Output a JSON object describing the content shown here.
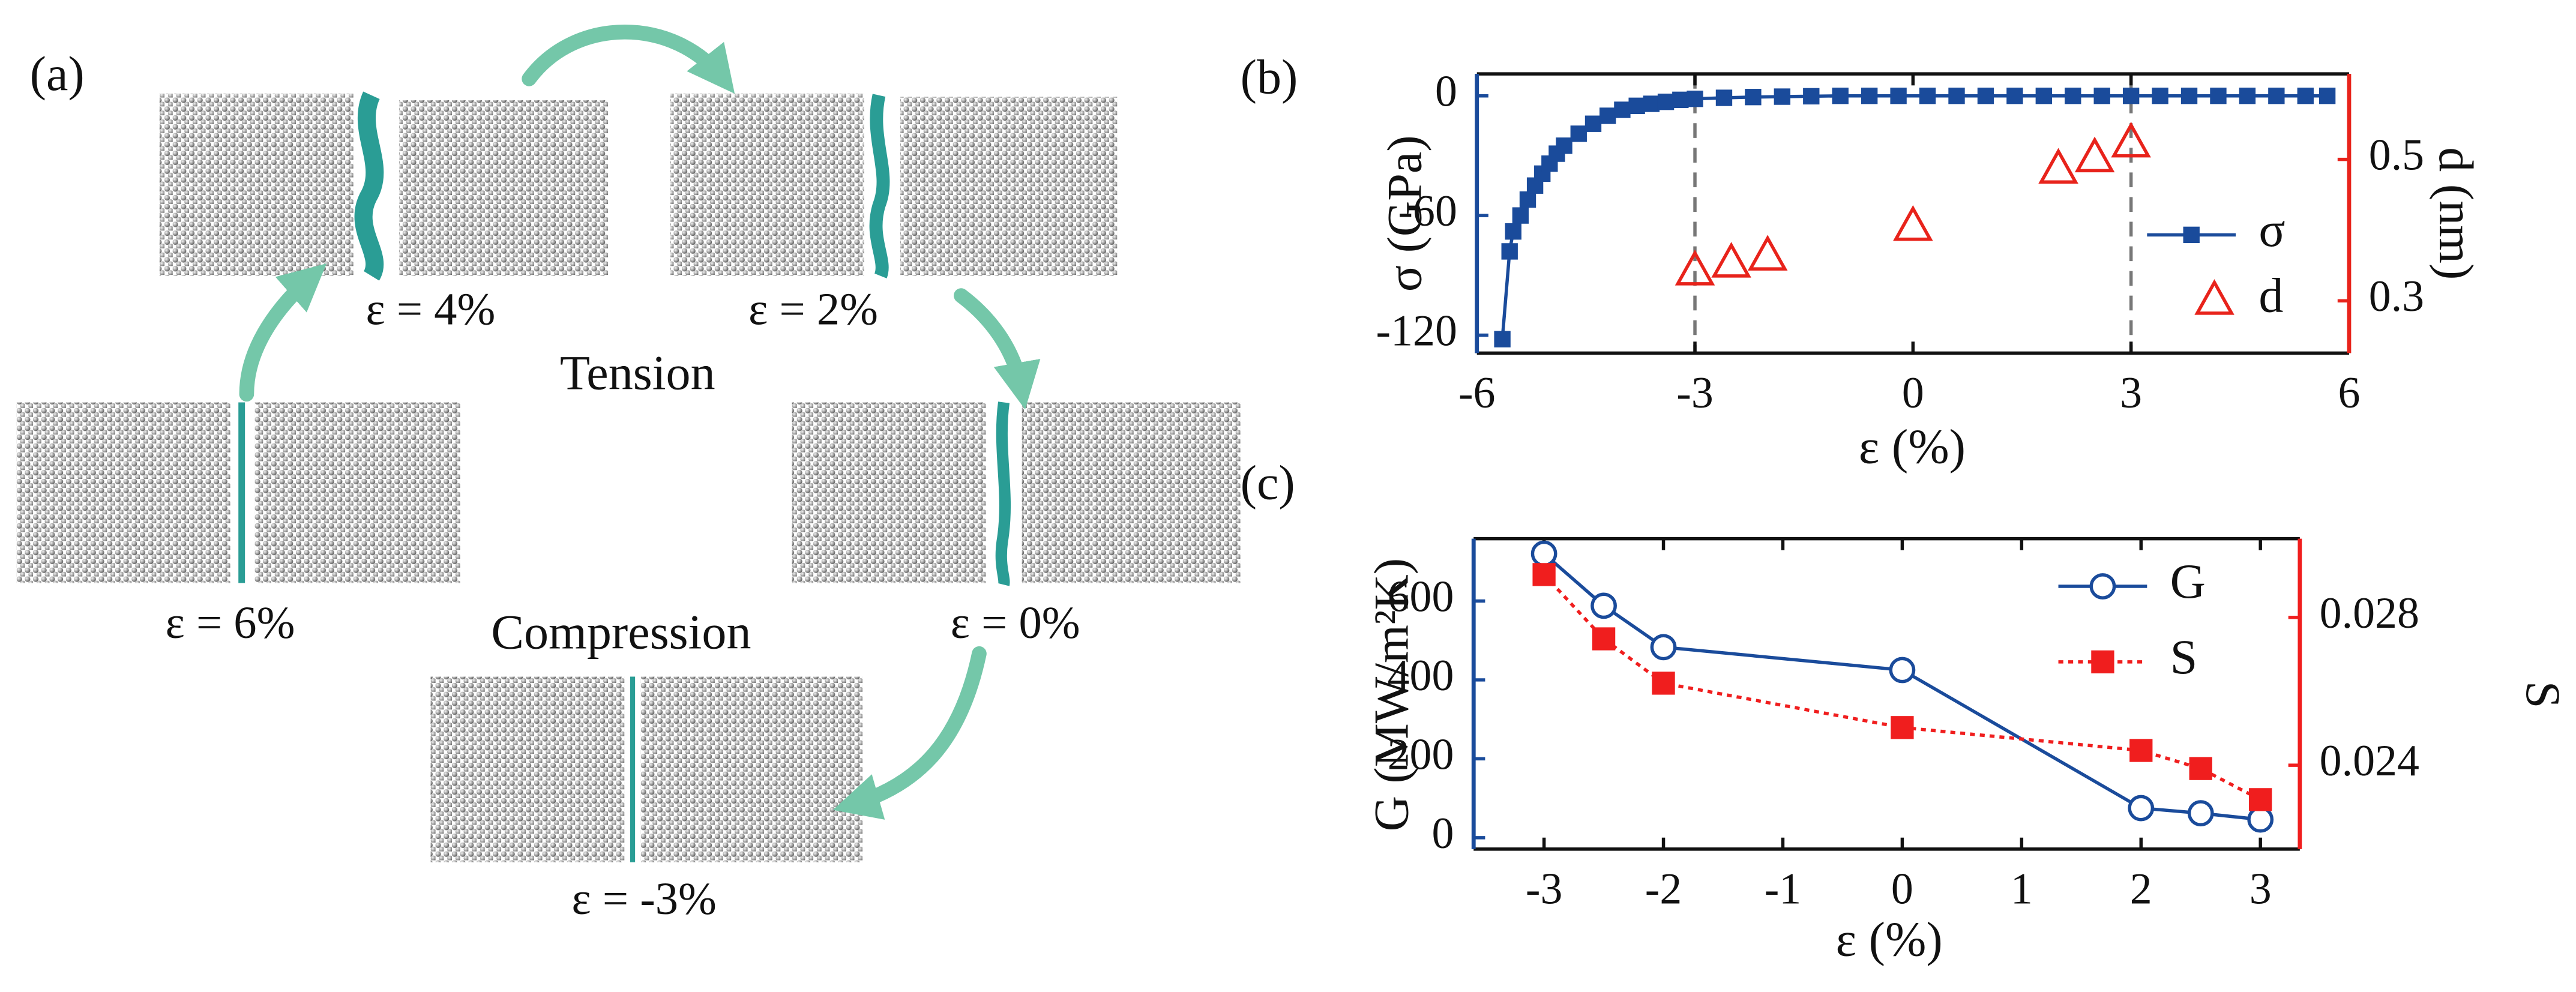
{
  "panel_a": {
    "label": "(a)",
    "snapshots": [
      {
        "label": "ε = 4%"
      },
      {
        "label": "ε = 2%"
      },
      {
        "label": "ε = 6%"
      },
      {
        "label": "ε = 0%"
      },
      {
        "label": "ε = -3%"
      }
    ],
    "tension": "Tension",
    "compression": "Compression"
  },
  "chart_data": [
    {
      "type": "line",
      "panel_label": "(b)",
      "xlabel": "ε (%)",
      "ylabel": "σ (GPa)",
      "y2label": "d (nm)",
      "xlim": [
        -6,
        6
      ],
      "xticks": [
        -6,
        -3,
        0,
        3,
        6
      ],
      "ylim": [
        -129,
        11
      ],
      "yticks": [
        0,
        -60,
        -120
      ],
      "y2lim": [
        0.226,
        0.621
      ],
      "y2ticks": [
        0.3,
        0.5
      ],
      "vlines": [
        -3,
        3
      ],
      "y_color": "#1a4b9b",
      "y2_color": "#e8231b",
      "series": [
        {
          "name": "σ",
          "color": "#1a4b9b",
          "marker": "square",
          "line_style": "solid",
          "axis": "y",
          "x": [
            -5.65,
            -5.55,
            -5.5,
            -5.4,
            -5.3,
            -5.2,
            -5.1,
            -5.0,
            -4.9,
            -4.8,
            -4.6,
            -4.4,
            -4.2,
            -4.0,
            -3.8,
            -3.6,
            -3.4,
            -3.2,
            -3.0,
            -2.6,
            -2.2,
            -1.8,
            -1.4,
            -1.0,
            -0.6,
            -0.2,
            0.2,
            0.6,
            1.0,
            1.4,
            1.8,
            2.2,
            2.6,
            3.0,
            3.4,
            3.8,
            4.2,
            4.6,
            5.0,
            5.4,
            5.7
          ],
          "values": [
            -122,
            -78,
            -68,
            -60,
            -52,
            -45,
            -39,
            -34,
            -29,
            -25,
            -19,
            -14,
            -10,
            -7,
            -5,
            -4,
            -3,
            -2,
            -1.5,
            -1,
            -0.6,
            -0.4,
            -0.2,
            0,
            0,
            0,
            0,
            0,
            0,
            0,
            0,
            0,
            0,
            0,
            0,
            0,
            0,
            0,
            0,
            0,
            0
          ]
        },
        {
          "name": "d",
          "color": "#e8231b",
          "marker": "triangle",
          "line_style": "none",
          "axis": "y2",
          "x": [
            -3,
            -2.5,
            -2,
            0,
            2,
            2.5,
            3
          ],
          "values": [
            0.342,
            0.353,
            0.363,
            0.405,
            0.486,
            0.502,
            0.523
          ]
        }
      ]
    },
    {
      "type": "line",
      "panel_label": "(c)",
      "xlabel": "ε (%)",
      "ylabel": "G (MW/m²K)",
      "y2label": "S",
      "xlim": [
        -3.59,
        3.33
      ],
      "xticks": [
        -3,
        -2,
        -1,
        0,
        1,
        2,
        3
      ],
      "ylim": [
        -29,
        758
      ],
      "yticks": [
        0,
        200,
        400,
        600
      ],
      "y2lim": [
        0.02173,
        0.03013
      ],
      "y2ticks": [
        0.024,
        0.028
      ],
      "y_color": "#1a4b9b",
      "y2_color": "#f01e1e",
      "series": [
        {
          "name": "G",
          "color": "#1a4b9b",
          "marker": "circle",
          "line_style": "solid",
          "axis": "y",
          "x": [
            -3,
            -2.5,
            -2,
            0,
            2,
            2.5,
            3
          ],
          "values": [
            720,
            588,
            483,
            425,
            75,
            62,
            46
          ]
        },
        {
          "name": "S",
          "color": "#f01e1e",
          "marker": "square",
          "line_style": "dotted",
          "axis": "y2",
          "x": [
            -3,
            -2.5,
            -2,
            0,
            2,
            2.5,
            3
          ],
          "values": [
            0.02916,
            0.02742,
            0.02622,
            0.02502,
            0.0244,
            0.02391,
            0.02307
          ]
        }
      ]
    }
  ]
}
